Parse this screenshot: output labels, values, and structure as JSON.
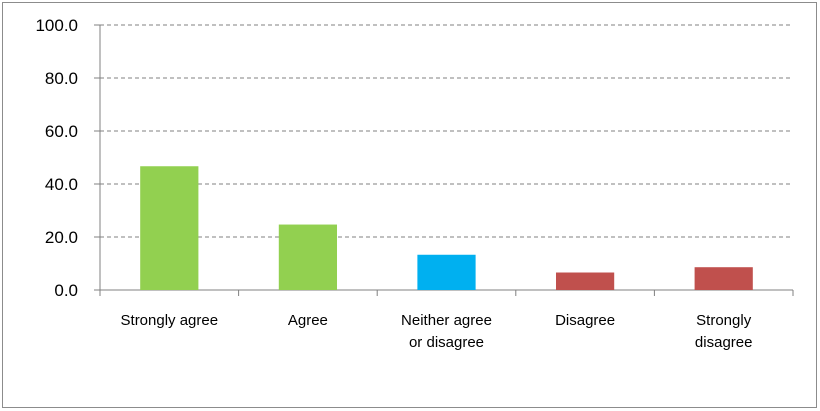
{
  "chart_data": {
    "type": "bar",
    "title": "",
    "xlabel": "",
    "ylabel": "",
    "ylim": [
      0,
      100
    ],
    "yticks": [
      "0.0",
      "20.0",
      "40.0",
      "60.0",
      "80.0",
      "100.0"
    ],
    "grid": true,
    "legend": "none",
    "categories": [
      [
        "Strongly agree"
      ],
      [
        "Agree"
      ],
      [
        "Neither agree",
        "or disagree"
      ],
      [
        "Disagree"
      ],
      [
        "Strongly",
        "disagree"
      ]
    ],
    "values": [
      46.7,
      24.7,
      13.3,
      6.6,
      8.6
    ],
    "colors": [
      "#92d050",
      "#92d050",
      "#00b0f0",
      "#c0504d",
      "#c0504d"
    ]
  }
}
